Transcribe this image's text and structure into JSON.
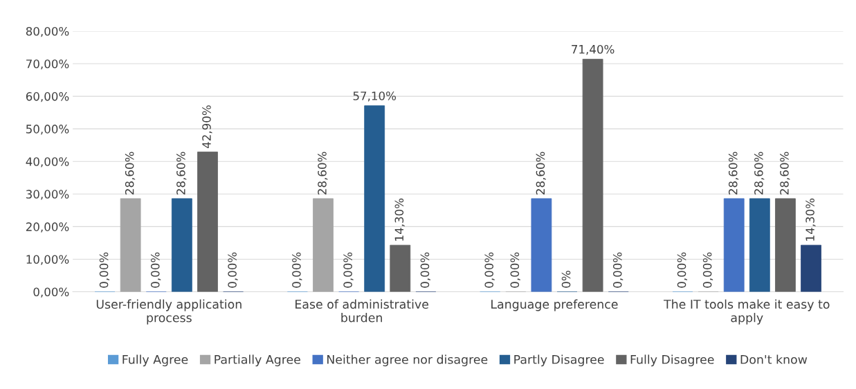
{
  "chart_data": {
    "type": "bar",
    "categories": [
      "User-friendly application process",
      "Ease of administrative burden",
      "Language preference",
      "The IT tools make it easy to apply"
    ],
    "series": [
      {
        "name": "Fully Agree",
        "color": "#5b9bd5",
        "values": [
          0,
          0,
          0,
          0
        ],
        "value_labels": [
          "0,00%",
          "0,00%",
          "0,00%",
          "0,00%"
        ]
      },
      {
        "name": "Partially Agree",
        "color": "#a5a5a5",
        "values": [
          28.6,
          28.6,
          0,
          0
        ],
        "value_labels": [
          "28,60%",
          "28,60%",
          "0,00%",
          "0,00%"
        ]
      },
      {
        "name": "Neither agree nor disagree",
        "color": "#4472c4",
        "values": [
          0,
          0,
          28.6,
          28.6
        ],
        "value_labels": [
          "0,00%",
          "0,00%",
          "28,60%",
          "28,60%"
        ]
      },
      {
        "name": "Partly Disagree",
        "color": "#255e91",
        "values": [
          28.6,
          57.1,
          0,
          28.6
        ],
        "value_labels": [
          "28,60%",
          "57,10%",
          "0%",
          "28,60%"
        ]
      },
      {
        "name": "Fully Disagree",
        "color": "#636363",
        "values": [
          42.9,
          14.3,
          71.4,
          28.6
        ],
        "value_labels": [
          "42,90%",
          "14,30%",
          "71,40%",
          "28,60%"
        ]
      },
      {
        "name": "Don't know",
        "color": "#264478",
        "values": [
          0,
          0,
          0,
          14.3
        ],
        "value_labels": [
          "0,00%",
          "0,00%",
          "0,00%",
          "14,30%"
        ]
      }
    ],
    "ylim": [
      0,
      80
    ],
    "yticks": [
      {
        "value": 0,
        "label": "0,00%"
      },
      {
        "value": 10,
        "label": "10,00%"
      },
      {
        "value": 20,
        "label": "20,00%"
      },
      {
        "value": 30,
        "label": "30,00%"
      },
      {
        "value": 40,
        "label": "40,00%"
      },
      {
        "value": 50,
        "label": "50,00%"
      },
      {
        "value": 60,
        "label": "60,00%"
      },
      {
        "value": 70,
        "label": "70,00%"
      },
      {
        "value": 80,
        "label": "80,00%"
      }
    ],
    "grid": "y",
    "legend": "bottom"
  }
}
